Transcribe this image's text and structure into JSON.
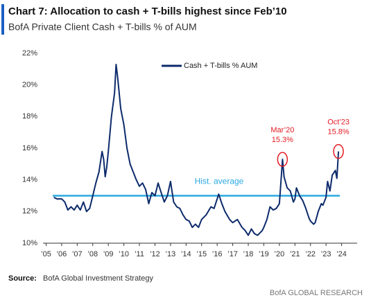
{
  "chart_data": {
    "type": "line",
    "title": "Chart 7: Allocation to cash + T-bills highest since Feb’10",
    "subtitle": "BofA Private Client Cash + T-bills % of AUM",
    "source_label": "Source:",
    "source": "BofA Global Investment Strategy",
    "footer": "BofA GLOBAL RESEARCH",
    "legend": "top",
    "x": [
      2005.5,
      2005.7,
      2006.0,
      2006.2,
      2006.4,
      2006.6,
      2006.8,
      2007.0,
      2007.2,
      2007.4,
      2007.6,
      2007.8,
      2008.0,
      2008.2,
      2008.4,
      2008.6,
      2008.7,
      2008.8,
      2008.9,
      2009.0,
      2009.2,
      2009.4,
      2009.5,
      2009.6,
      2009.8,
      2010.0,
      2010.2,
      2010.4,
      2010.6,
      2010.8,
      2011.0,
      2011.2,
      2011.4,
      2011.6,
      2011.8,
      2012.0,
      2012.2,
      2012.4,
      2012.6,
      2012.8,
      2013.0,
      2013.2,
      2013.4,
      2013.6,
      2013.8,
      2014.0,
      2014.2,
      2014.4,
      2014.6,
      2014.8,
      2015.0,
      2015.3,
      2015.6,
      2015.8,
      2016.0,
      2016.1,
      2016.3,
      2016.5,
      2016.8,
      2017.0,
      2017.3,
      2017.6,
      2017.8,
      2018.0,
      2018.2,
      2018.4,
      2018.6,
      2018.9,
      2019.0,
      2019.2,
      2019.4,
      2019.6,
      2019.8,
      2020.0,
      2020.2,
      2020.3,
      2020.5,
      2020.7,
      2020.9,
      2021.0,
      2021.1,
      2021.3,
      2021.5,
      2021.7,
      2021.9,
      2022.0,
      2022.2,
      2022.3,
      2022.5,
      2022.7,
      2022.8,
      2023.0,
      2023.1,
      2023.25,
      2023.4,
      2023.6,
      2023.7,
      2023.8
    ],
    "series": [
      {
        "name": "Cash + T-bills % AUM",
        "color": "#0c2a6b",
        "values": [
          12.9,
          12.8,
          12.8,
          12.6,
          12.1,
          12.3,
          12.1,
          12.4,
          12.1,
          12.6,
          12.0,
          12.2,
          13.0,
          13.8,
          14.5,
          15.8,
          15.3,
          14.2,
          14.8,
          15.8,
          18.0,
          19.5,
          21.3,
          20.5,
          18.5,
          17.5,
          16.0,
          15.0,
          14.5,
          14.0,
          13.6,
          13.8,
          13.4,
          12.5,
          13.2,
          13.0,
          13.8,
          13.2,
          12.6,
          13.0,
          13.9,
          12.6,
          12.3,
          12.2,
          11.8,
          11.5,
          11.4,
          11.0,
          11.2,
          11.0,
          11.5,
          11.8,
          12.3,
          12.2,
          12.8,
          13.1,
          12.5,
          12.0,
          11.5,
          11.3,
          11.5,
          11.0,
          10.8,
          10.5,
          10.9,
          10.6,
          10.5,
          10.8,
          11.0,
          11.5,
          12.3,
          12.1,
          12.2,
          12.5,
          15.3,
          14.2,
          13.5,
          13.3,
          12.6,
          12.8,
          13.5,
          13.0,
          12.7,
          12.2,
          11.6,
          11.4,
          11.2,
          11.3,
          12.0,
          12.5,
          12.4,
          12.9,
          13.9,
          13.3,
          14.3,
          14.6,
          14.1,
          15.8
        ]
      }
    ],
    "reference_line": {
      "label": "Hist. average",
      "value": 13,
      "color": "#29a8e0"
    },
    "annotations": [
      {
        "label": "Mar’20",
        "value_label": "15.3%",
        "x": 2020.2,
        "y": 15.3,
        "color": "#e31b23"
      },
      {
        "label": "Oct’23",
        "value_label": "15.8%",
        "x": 2023.8,
        "y": 15.8,
        "color": "#e31b23"
      }
    ],
    "xlim": [
      2004.8,
      2025.0
    ],
    "xticks": [
      {
        "value": 2005,
        "label": "’05"
      },
      {
        "value": 2006,
        "label": "’06"
      },
      {
        "value": 2007,
        "label": "’07"
      },
      {
        "value": 2008,
        "label": "’08"
      },
      {
        "value": 2009,
        "label": "’09"
      },
      {
        "value": 2010,
        "label": "’10"
      },
      {
        "value": 2011,
        "label": "’11"
      },
      {
        "value": 2012,
        "label": "’12"
      },
      {
        "value": 2013,
        "label": "’13"
      },
      {
        "value": 2014,
        "label": "’14"
      },
      {
        "value": 2015,
        "label": "’15"
      },
      {
        "value": 2016,
        "label": "’16"
      },
      {
        "value": 2017,
        "label": "’17"
      },
      {
        "value": 2018,
        "label": "’18"
      },
      {
        "value": 2019,
        "label": "’19"
      },
      {
        "value": 2020,
        "label": "’20"
      },
      {
        "value": 2021,
        "label": "’21"
      },
      {
        "value": 2022,
        "label": "’22"
      },
      {
        "value": 2023,
        "label": "’23"
      },
      {
        "value": 2024,
        "label": "’24"
      }
    ],
    "ylim": [
      10,
      22
    ],
    "yticks": [
      {
        "value": 10,
        "label": "10%"
      },
      {
        "value": 12,
        "label": "12%"
      },
      {
        "value": 14,
        "label": "14%"
      },
      {
        "value": 16,
        "label": "16%"
      },
      {
        "value": 18,
        "label": "18%"
      },
      {
        "value": 20,
        "label": "20%"
      },
      {
        "value": 22,
        "label": "22%"
      }
    ]
  }
}
